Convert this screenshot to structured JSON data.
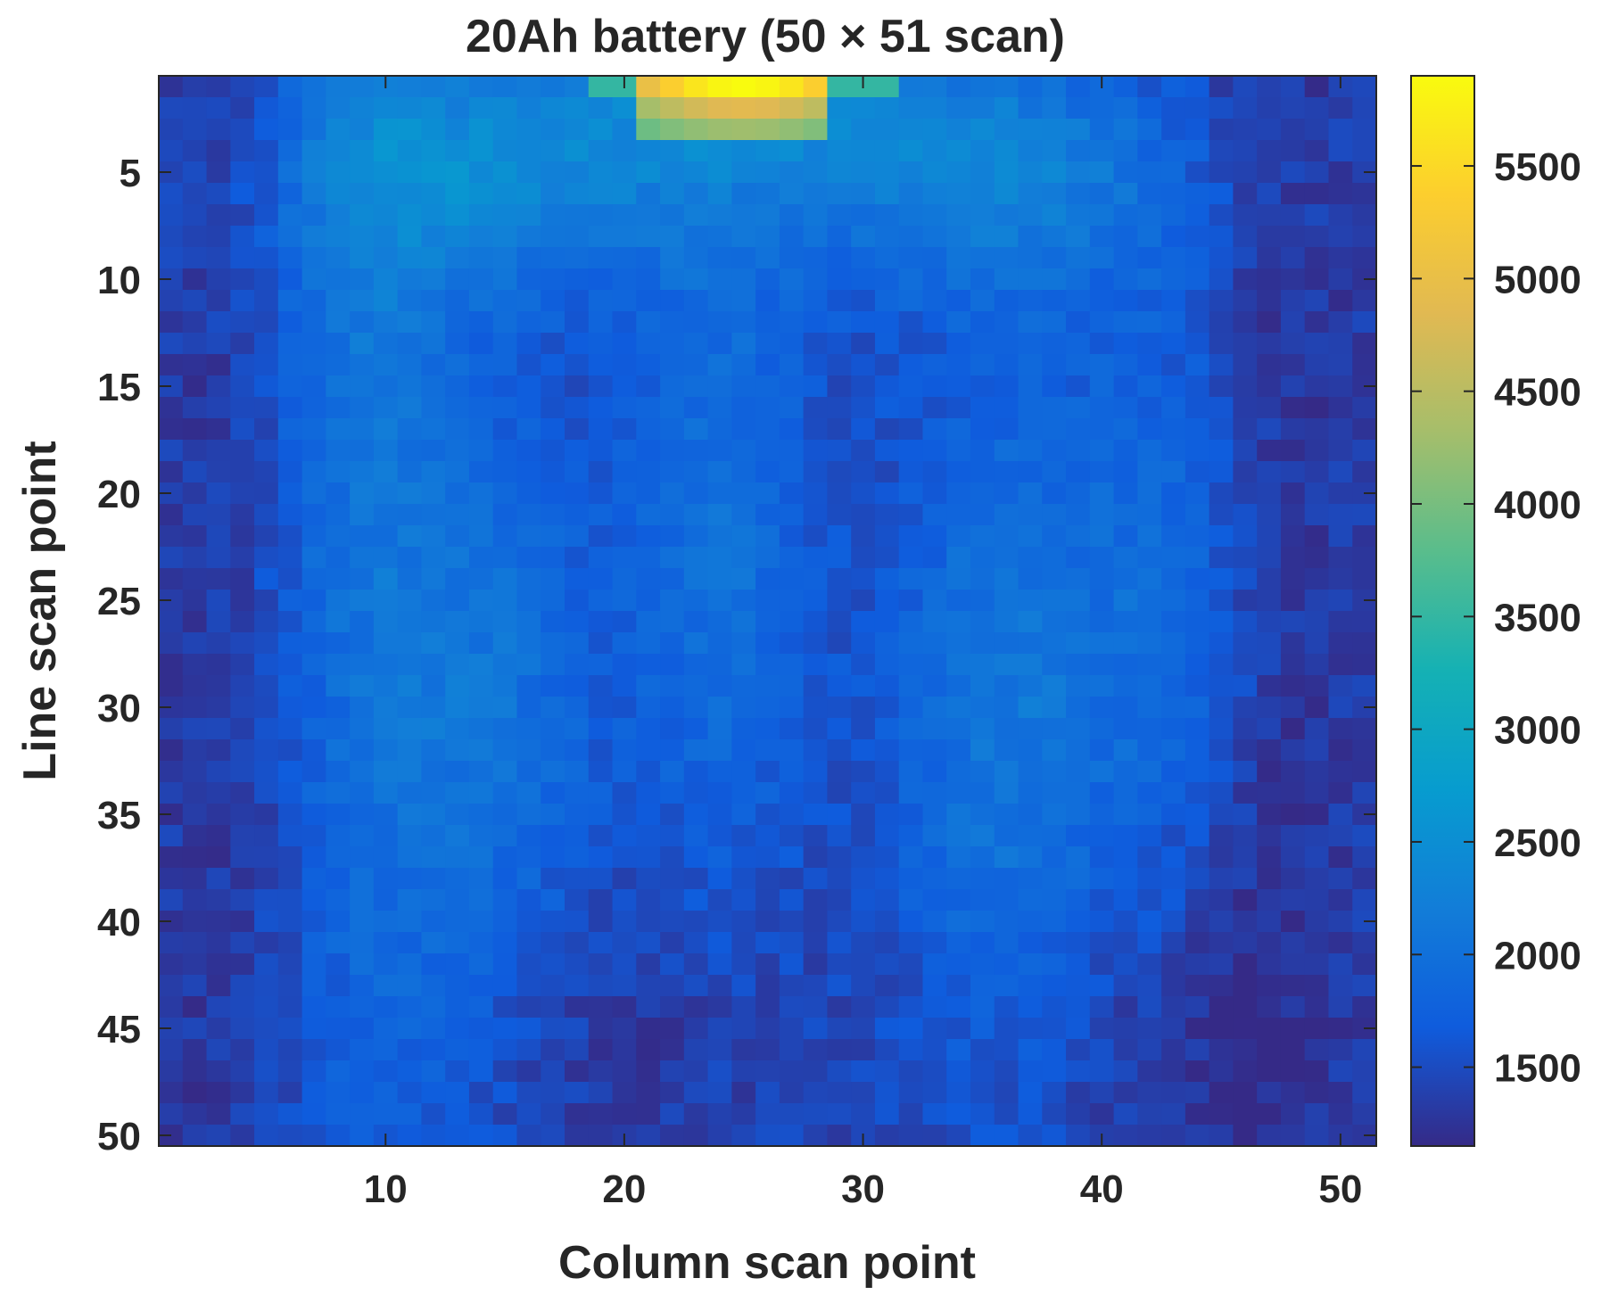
{
  "chart_data": {
    "type": "heatmap",
    "title": "20Ah battery (50 × 51 scan)",
    "xlabel": "Column scan point",
    "ylabel": "Line scan point",
    "n_columns": 51,
    "n_rows": 50,
    "x_range": [
      0.5,
      51.5
    ],
    "y_range": [
      0.5,
      50.5
    ],
    "y_direction": "reversed",
    "x_ticks": [
      10,
      20,
      30,
      40,
      50
    ],
    "y_ticks": [
      5,
      10,
      15,
      20,
      25,
      30,
      35,
      40,
      45,
      50
    ],
    "colorbar": {
      "colormap": "parula",
      "range": [
        1150,
        5900
      ],
      "ticks": [
        1500,
        2000,
        2500,
        3000,
        3500,
        4000,
        4500,
        5000,
        5500
      ]
    },
    "value_range_estimated": [
      1150,
      5900
    ],
    "hot_spot": {
      "columns": [
        21,
        28
      ],
      "rows": [
        1,
        4
      ],
      "peak_value": 5900
    },
    "grid": false
  }
}
